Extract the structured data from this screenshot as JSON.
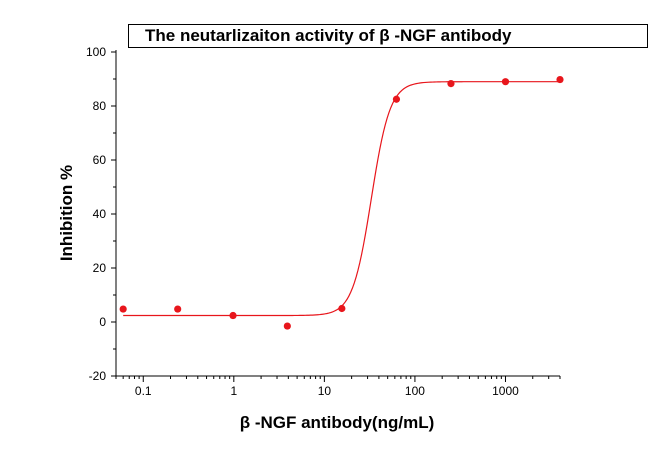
{
  "chart_data": {
    "type": "scatter",
    "title": "The neutarlizaiton activity of β -NGF antibody",
    "xlabel": "β -NGF antibody(ng/mL)",
    "ylabel": "Inhibition %",
    "x_scale": "log",
    "xlim": [
      0.05,
      4000
    ],
    "ylim": [
      -20,
      100
    ],
    "x_ticks": [
      0.1,
      1,
      10,
      100,
      1000
    ],
    "x_tick_labels": [
      "0.1",
      "1",
      "10",
      "100",
      "1000"
    ],
    "y_ticks": [
      -20,
      0,
      20,
      40,
      60,
      80,
      100
    ],
    "y_tick_labels": [
      "-20",
      "0",
      "20",
      "40",
      "60",
      "80",
      "100"
    ],
    "series": [
      {
        "x": [
          0.06,
          0.24,
          0.98,
          3.9,
          15.6,
          62.5,
          250,
          1000,
          4000
        ],
        "y": [
          4.8,
          4.8,
          2.4,
          -1.5,
          5.0,
          82.5,
          88.3,
          89.0,
          89.8
        ],
        "color": "#e8161c"
      }
    ],
    "fit": {
      "type": "sigmoid",
      "bottom": 2.4,
      "top": 89.0,
      "ec50": 33,
      "hill": 4.2,
      "color": "#e8161c"
    },
    "grid": false,
    "legend": "none"
  }
}
